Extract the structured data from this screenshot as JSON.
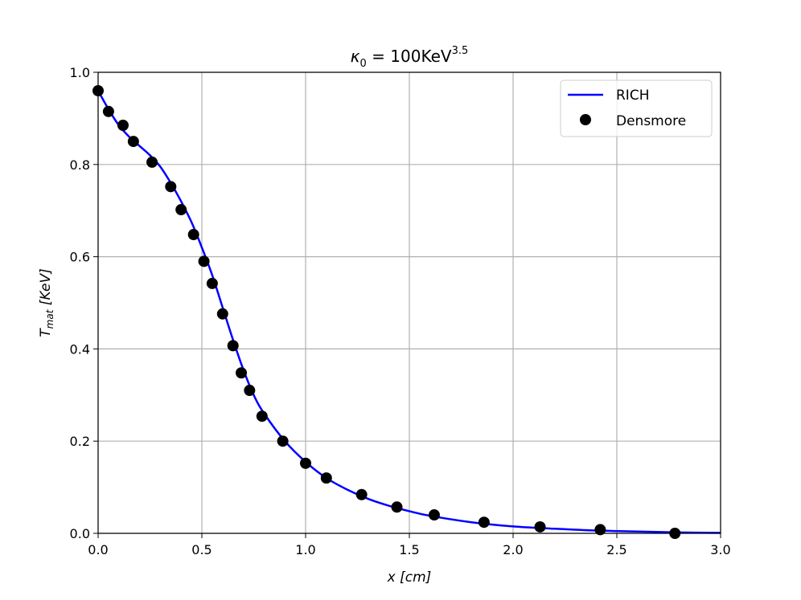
{
  "chart_data": {
    "type": "line",
    "title": {
      "symbol": "κ",
      "subscript": "0",
      "equals": " = 100KeV",
      "superscript": "3.5"
    },
    "xlabel": {
      "var": "x",
      "unit": "[cm]"
    },
    "ylabel": {
      "var": "T",
      "subscript": "mat",
      "unit": "[KeV]"
    },
    "xlim": [
      0,
      3.0
    ],
    "ylim": [
      0,
      1.0
    ],
    "xticks": [
      "0.0",
      "0.5",
      "1.0",
      "1.5",
      "2.0",
      "2.5",
      "3.0"
    ],
    "yticks": [
      "0.0",
      "0.2",
      "0.4",
      "0.6",
      "0.8",
      "1.0"
    ],
    "grid": true,
    "legend_position": "top-right",
    "series": [
      {
        "name": "RICH",
        "kind": "line",
        "color": "#0000ff",
        "x": [
          0.0,
          0.05,
          0.1,
          0.15,
          0.2,
          0.25,
          0.3,
          0.35,
          0.4,
          0.45,
          0.5,
          0.55,
          0.6,
          0.65,
          0.7,
          0.75,
          0.8,
          0.9,
          1.0,
          1.1,
          1.2,
          1.3,
          1.4,
          1.5,
          1.6,
          1.8,
          2.0,
          2.2,
          2.4,
          2.6,
          2.8,
          3.0
        ],
        "y": [
          0.96,
          0.92,
          0.885,
          0.86,
          0.84,
          0.82,
          0.795,
          0.76,
          0.72,
          0.675,
          0.62,
          0.56,
          0.49,
          0.42,
          0.355,
          0.3,
          0.26,
          0.2,
          0.155,
          0.12,
          0.095,
          0.075,
          0.06,
          0.048,
          0.038,
          0.024,
          0.015,
          0.01,
          0.006,
          0.004,
          0.002,
          0.001
        ]
      },
      {
        "name": "Densmore",
        "kind": "scatter",
        "color": "#000000",
        "x": [
          0.0,
          0.05,
          0.12,
          0.17,
          0.26,
          0.35,
          0.4,
          0.46,
          0.51,
          0.55,
          0.6,
          0.65,
          0.69,
          0.73,
          0.79,
          0.89,
          1.0,
          1.1,
          1.27,
          1.44,
          1.62,
          1.86,
          2.13,
          2.42,
          2.78
        ],
        "y": [
          0.96,
          0.915,
          0.885,
          0.85,
          0.805,
          0.752,
          0.702,
          0.648,
          0.59,
          0.542,
          0.476,
          0.407,
          0.348,
          0.31,
          0.254,
          0.2,
          0.152,
          0.12,
          0.084,
          0.057,
          0.04,
          0.024,
          0.014,
          0.008,
          0.0
        ]
      }
    ]
  }
}
